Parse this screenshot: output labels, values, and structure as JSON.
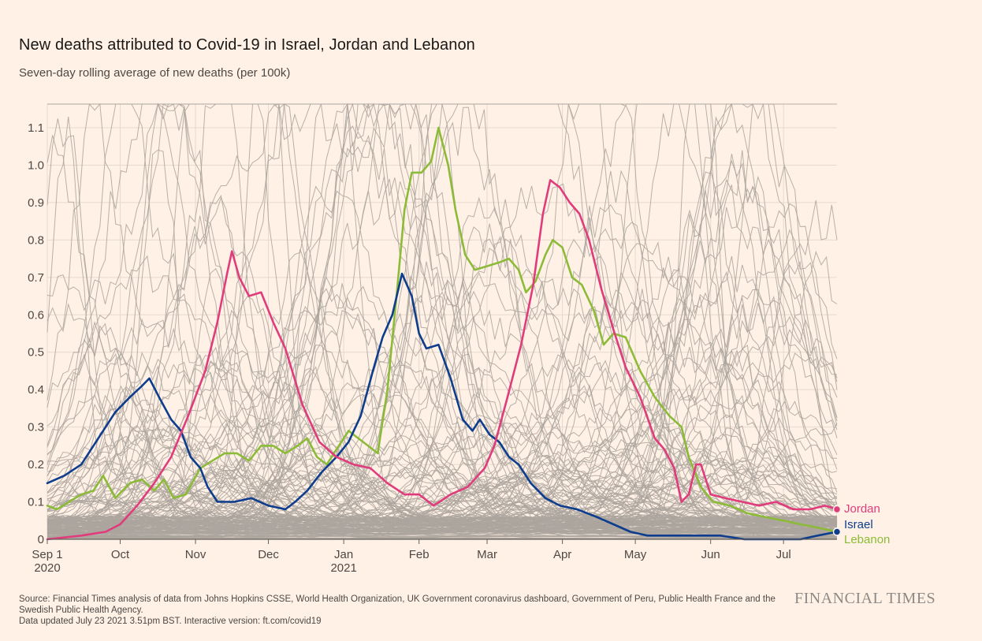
{
  "title": "New deaths attributed to Covid-19 in Israel, Jordan and Lebanon",
  "subtitle": "Seven-day rolling average of new deaths (per 100k)",
  "footer": {
    "source": "Source: Financial Times analysis of data from Johns Hopkins CSSE, World Health Organization, UK Government coronavirus dashboard, Government of Peru, Public Health France and the Swedish Public Health Agency.",
    "updated": "Data updated July 23 2021 3.51pm BST. Interactive version: ft.com/covid19"
  },
  "brand": "FINANCIAL TIMES",
  "colors": {
    "background": "#fff1e5",
    "grid": "#e6d9ce",
    "background_lines": "#aba49e",
    "Jordan": "#e03c7c",
    "Israel": "#0d3d8c",
    "Lebanon": "#8cbb38"
  },
  "chart_data": {
    "type": "line",
    "x_axis": {
      "type": "date",
      "range": [
        "2020-09-01",
        "2021-07-23"
      ],
      "ticks": [
        {
          "date": "2020-09-01",
          "label": "Sep 1",
          "sublabel": "2020"
        },
        {
          "date": "2020-10-01",
          "label": "Oct"
        },
        {
          "date": "2020-11-01",
          "label": "Nov"
        },
        {
          "date": "2020-12-01",
          "label": "Dec"
        },
        {
          "date": "2021-01-01",
          "label": "Jan",
          "sublabel": "2021"
        },
        {
          "date": "2021-02-01",
          "label": "Feb"
        },
        {
          "date": "2021-03-01",
          "label": "Mar"
        },
        {
          "date": "2021-04-01",
          "label": "Apr"
        },
        {
          "date": "2021-05-01",
          "label": "May"
        },
        {
          "date": "2021-06-01",
          "label": "Jun"
        },
        {
          "date": "2021-07-01",
          "label": "Jul"
        }
      ]
    },
    "y_axis": {
      "range": [
        0,
        1.1
      ],
      "ticks": [
        0,
        0.1,
        0.2,
        0.3,
        0.4,
        0.5,
        0.6,
        0.7,
        0.8,
        0.9,
        1.0,
        1.1
      ],
      "tick_labels": [
        "0",
        "0.1",
        "0.2",
        "0.3",
        "0.4",
        "0.5",
        "0.6",
        "0.7",
        "0.8",
        "0.9",
        "1.0",
        "1.1"
      ]
    },
    "grid": true,
    "background_series": "other countries shown as grey lines",
    "series": [
      {
        "name": "Jordan",
        "points": [
          [
            "2020-09-01",
            0.0
          ],
          [
            "2020-09-15",
            0.01
          ],
          [
            "2020-09-25",
            0.02
          ],
          [
            "2020-10-01",
            0.04
          ],
          [
            "2020-10-08",
            0.09
          ],
          [
            "2020-10-15",
            0.15
          ],
          [
            "2020-10-22",
            0.22
          ],
          [
            "2020-10-29",
            0.33
          ],
          [
            "2020-11-05",
            0.45
          ],
          [
            "2020-11-10",
            0.58
          ],
          [
            "2020-11-14",
            0.71
          ],
          [
            "2020-11-16",
            0.77
          ],
          [
            "2020-11-19",
            0.7
          ],
          [
            "2020-11-23",
            0.65
          ],
          [
            "2020-11-28",
            0.66
          ],
          [
            "2020-12-03",
            0.58
          ],
          [
            "2020-12-08",
            0.51
          ],
          [
            "2020-12-15",
            0.36
          ],
          [
            "2020-12-22",
            0.26
          ],
          [
            "2020-12-29",
            0.22
          ],
          [
            "2021-01-05",
            0.2
          ],
          [
            "2021-01-12",
            0.19
          ],
          [
            "2021-01-19",
            0.15
          ],
          [
            "2021-01-26",
            0.12
          ],
          [
            "2021-02-01",
            0.12
          ],
          [
            "2021-02-07",
            0.09
          ],
          [
            "2021-02-14",
            0.12
          ],
          [
            "2021-02-21",
            0.14
          ],
          [
            "2021-02-28",
            0.19
          ],
          [
            "2021-03-04",
            0.25
          ],
          [
            "2021-03-09",
            0.37
          ],
          [
            "2021-03-15",
            0.52
          ],
          [
            "2021-03-20",
            0.68
          ],
          [
            "2021-03-24",
            0.87
          ],
          [
            "2021-03-27",
            0.96
          ],
          [
            "2021-03-31",
            0.94
          ],
          [
            "2021-04-04",
            0.9
          ],
          [
            "2021-04-08",
            0.87
          ],
          [
            "2021-04-12",
            0.8
          ],
          [
            "2021-04-17",
            0.67
          ],
          [
            "2021-04-22",
            0.56
          ],
          [
            "2021-04-27",
            0.46
          ],
          [
            "2021-05-03",
            0.38
          ],
          [
            "2021-05-09",
            0.27
          ],
          [
            "2021-05-13",
            0.24
          ],
          [
            "2021-05-17",
            0.19
          ],
          [
            "2021-05-20",
            0.1
          ],
          [
            "2021-05-23",
            0.12
          ],
          [
            "2021-05-26",
            0.2
          ],
          [
            "2021-05-28",
            0.2
          ],
          [
            "2021-06-01",
            0.12
          ],
          [
            "2021-06-07",
            0.11
          ],
          [
            "2021-06-14",
            0.1
          ],
          [
            "2021-06-21",
            0.09
          ],
          [
            "2021-06-28",
            0.1
          ],
          [
            "2021-07-05",
            0.08
          ],
          [
            "2021-07-12",
            0.08
          ],
          [
            "2021-07-18",
            0.09
          ],
          [
            "2021-07-23",
            0.08
          ]
        ]
      },
      {
        "name": "Israel",
        "points": [
          [
            "2020-09-01",
            0.15
          ],
          [
            "2020-09-08",
            0.17
          ],
          [
            "2020-09-15",
            0.2
          ],
          [
            "2020-09-22",
            0.27
          ],
          [
            "2020-09-29",
            0.34
          ],
          [
            "2020-10-05",
            0.38
          ],
          [
            "2020-10-10",
            0.41
          ],
          [
            "2020-10-13",
            0.43
          ],
          [
            "2020-10-17",
            0.38
          ],
          [
            "2020-10-22",
            0.32
          ],
          [
            "2020-10-26",
            0.29
          ],
          [
            "2020-10-30",
            0.22
          ],
          [
            "2020-11-03",
            0.19
          ],
          [
            "2020-11-06",
            0.14
          ],
          [
            "2020-11-10",
            0.1
          ],
          [
            "2020-11-17",
            0.1
          ],
          [
            "2020-11-24",
            0.11
          ],
          [
            "2020-12-01",
            0.09
          ],
          [
            "2020-12-08",
            0.08
          ],
          [
            "2020-12-12",
            0.1
          ],
          [
            "2020-12-17",
            0.13
          ],
          [
            "2020-12-23",
            0.18
          ],
          [
            "2020-12-29",
            0.22
          ],
          [
            "2021-01-03",
            0.26
          ],
          [
            "2021-01-08",
            0.33
          ],
          [
            "2021-01-13",
            0.45
          ],
          [
            "2021-01-17",
            0.54
          ],
          [
            "2021-01-21",
            0.6
          ],
          [
            "2021-01-25",
            0.71
          ],
          [
            "2021-01-29",
            0.65
          ],
          [
            "2021-02-01",
            0.55
          ],
          [
            "2021-02-04",
            0.51
          ],
          [
            "2021-02-09",
            0.52
          ],
          [
            "2021-02-14",
            0.43
          ],
          [
            "2021-02-19",
            0.32
          ],
          [
            "2021-02-23",
            0.29
          ],
          [
            "2021-02-26",
            0.32
          ],
          [
            "2021-03-02",
            0.28
          ],
          [
            "2021-03-06",
            0.26
          ],
          [
            "2021-03-10",
            0.22
          ],
          [
            "2021-03-14",
            0.2
          ],
          [
            "2021-03-19",
            0.15
          ],
          [
            "2021-03-25",
            0.11
          ],
          [
            "2021-03-31",
            0.09
          ],
          [
            "2021-04-07",
            0.08
          ],
          [
            "2021-04-15",
            0.06
          ],
          [
            "2021-04-22",
            0.04
          ],
          [
            "2021-04-29",
            0.02
          ],
          [
            "2021-05-06",
            0.01
          ],
          [
            "2021-05-15",
            0.01
          ],
          [
            "2021-05-25",
            0.01
          ],
          [
            "2021-06-05",
            0.01
          ],
          [
            "2021-06-15",
            0.0
          ],
          [
            "2021-06-25",
            0.0
          ],
          [
            "2021-07-08",
            0.0
          ],
          [
            "2021-07-15",
            0.01
          ],
          [
            "2021-07-23",
            0.02
          ]
        ]
      },
      {
        "name": "Lebanon",
        "points": [
          [
            "2020-09-01",
            0.09
          ],
          [
            "2020-09-05",
            0.08
          ],
          [
            "2020-09-10",
            0.1
          ],
          [
            "2020-09-15",
            0.12
          ],
          [
            "2020-09-20",
            0.13
          ],
          [
            "2020-09-24",
            0.17
          ],
          [
            "2020-09-29",
            0.11
          ],
          [
            "2020-10-05",
            0.15
          ],
          [
            "2020-10-10",
            0.16
          ],
          [
            "2020-10-15",
            0.13
          ],
          [
            "2020-10-19",
            0.16
          ],
          [
            "2020-10-23",
            0.11
          ],
          [
            "2020-10-28",
            0.12
          ],
          [
            "2020-11-03",
            0.19
          ],
          [
            "2020-11-08",
            0.21
          ],
          [
            "2020-11-13",
            0.23
          ],
          [
            "2020-11-18",
            0.23
          ],
          [
            "2020-11-23",
            0.21
          ],
          [
            "2020-11-28",
            0.25
          ],
          [
            "2020-12-03",
            0.25
          ],
          [
            "2020-12-08",
            0.23
          ],
          [
            "2020-12-13",
            0.25
          ],
          [
            "2020-12-17",
            0.27
          ],
          [
            "2020-12-21",
            0.22
          ],
          [
            "2020-12-25",
            0.2
          ],
          [
            "2020-12-29",
            0.24
          ],
          [
            "2021-01-03",
            0.29
          ],
          [
            "2021-01-07",
            0.27
          ],
          [
            "2021-01-11",
            0.25
          ],
          [
            "2021-01-15",
            0.23
          ],
          [
            "2021-01-19",
            0.4
          ],
          [
            "2021-01-23",
            0.67
          ],
          [
            "2021-01-26",
            0.88
          ],
          [
            "2021-01-29",
            0.98
          ],
          [
            "2021-02-02",
            0.98
          ],
          [
            "2021-02-06",
            1.01
          ],
          [
            "2021-02-09",
            1.1
          ],
          [
            "2021-02-13",
            1.0
          ],
          [
            "2021-02-16",
            0.88
          ],
          [
            "2021-02-20",
            0.76
          ],
          [
            "2021-02-24",
            0.72
          ],
          [
            "2021-03-01",
            0.73
          ],
          [
            "2021-03-06",
            0.74
          ],
          [
            "2021-03-10",
            0.75
          ],
          [
            "2021-03-14",
            0.72
          ],
          [
            "2021-03-17",
            0.66
          ],
          [
            "2021-03-21",
            0.69
          ],
          [
            "2021-03-25",
            0.76
          ],
          [
            "2021-03-28",
            0.8
          ],
          [
            "2021-04-01",
            0.78
          ],
          [
            "2021-04-05",
            0.7
          ],
          [
            "2021-04-09",
            0.68
          ],
          [
            "2021-04-14",
            0.61
          ],
          [
            "2021-04-18",
            0.52
          ],
          [
            "2021-04-22",
            0.55
          ],
          [
            "2021-04-27",
            0.54
          ],
          [
            "2021-05-03",
            0.45
          ],
          [
            "2021-05-09",
            0.38
          ],
          [
            "2021-05-15",
            0.33
          ],
          [
            "2021-05-20",
            0.3
          ],
          [
            "2021-05-23",
            0.22
          ],
          [
            "2021-05-28",
            0.14
          ],
          [
            "2021-06-02",
            0.1
          ],
          [
            "2021-06-09",
            0.09
          ],
          [
            "2021-06-16",
            0.07
          ],
          [
            "2021-06-23",
            0.06
          ],
          [
            "2021-07-01",
            0.05
          ],
          [
            "2021-07-08",
            0.04
          ],
          [
            "2021-07-16",
            0.03
          ],
          [
            "2021-07-23",
            0.02
          ]
        ]
      }
    ]
  }
}
